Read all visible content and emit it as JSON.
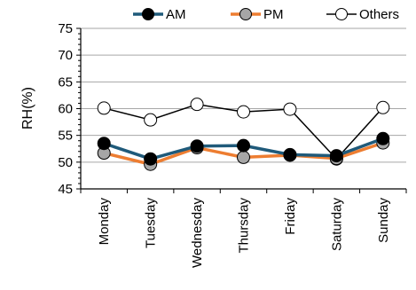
{
  "chart_data": {
    "type": "line",
    "title": "",
    "xlabel": "",
    "ylabel": "RH(%)",
    "ylim": [
      45,
      75
    ],
    "yticks": [
      45,
      50,
      55,
      60,
      65,
      70,
      75
    ],
    "grid": "horizontal",
    "legend": "top",
    "categories": [
      "Monday",
      "Tuesday",
      "Wednesday",
      "Thursday",
      "Friday",
      "Saturday",
      "Sunday"
    ],
    "series": [
      {
        "name": "AM",
        "values": [
          53.5,
          50.6,
          53.0,
          53.1,
          51.4,
          51.2,
          54.4
        ],
        "line_color": "#1f5a7a",
        "marker_fill": "#000000",
        "marker_stroke": "#000000"
      },
      {
        "name": "PM",
        "values": [
          51.7,
          49.6,
          52.7,
          50.9,
          51.3,
          50.7,
          53.6
        ],
        "line_color": "#ed7d31",
        "marker_fill": "#a6a6a6",
        "marker_stroke": "#000000"
      },
      {
        "name": "Others",
        "values": [
          60.1,
          57.9,
          60.8,
          59.4,
          59.9,
          50.6,
          60.2
        ],
        "line_color": "#000000",
        "marker_fill": "#ffffff",
        "marker_stroke": "#000000"
      }
    ]
  }
}
